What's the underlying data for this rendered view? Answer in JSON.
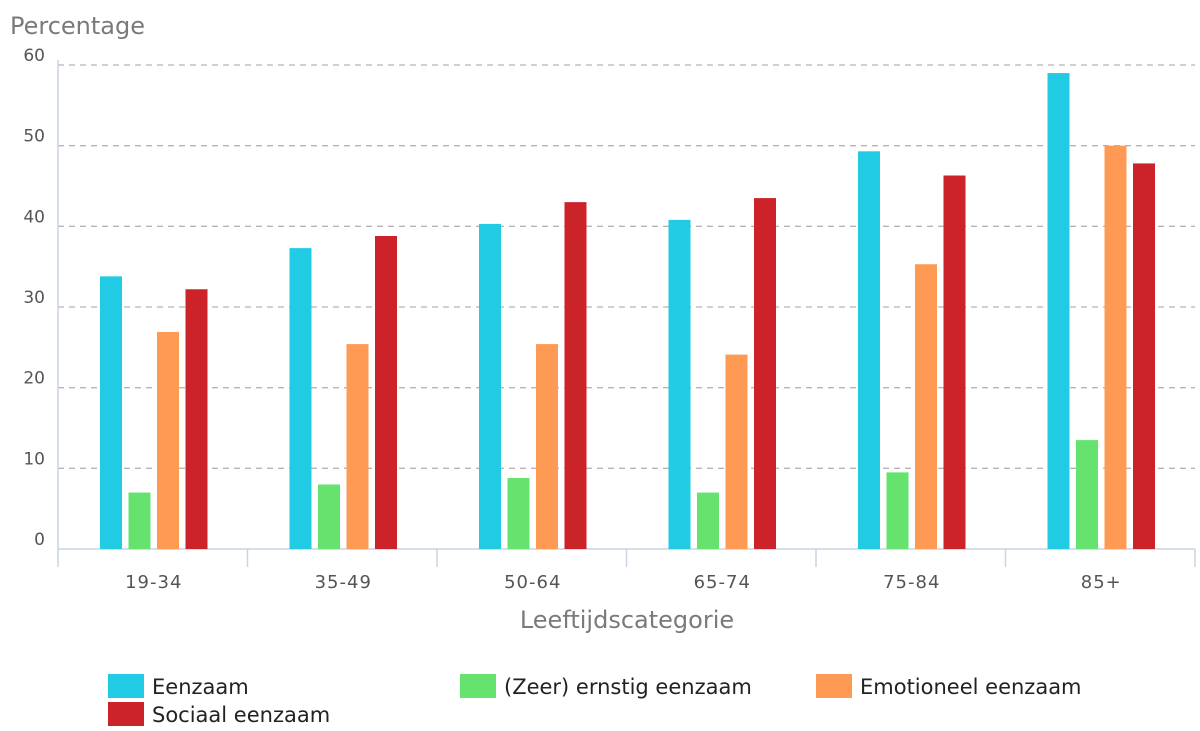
{
  "chart_data": {
    "type": "bar",
    "ylabel": "Percentage",
    "xlabel": "Leeftijdscategorie",
    "ylim": [
      0,
      60
    ],
    "yticks": [
      0,
      10,
      20,
      30,
      40,
      50,
      60
    ],
    "grid": true,
    "legend_position": "bottom",
    "categories": [
      "19-34",
      "35-49",
      "50-64",
      "65-74",
      "75-84",
      "85+"
    ],
    "series": [
      {
        "name": "Eenzaam",
        "color": "#22cbe4",
        "values": [
          33.8,
          37.3,
          40.3,
          40.8,
          49.3,
          59.0
        ]
      },
      {
        "name": "(Zeer) ernstig eenzaam",
        "color": "#66e36f",
        "values": [
          7.0,
          8.0,
          8.8,
          7.0,
          9.5,
          13.5
        ]
      },
      {
        "name": "Emotioneel eenzaam",
        "color": "#ff9a55",
        "values": [
          26.9,
          25.4,
          25.4,
          24.1,
          35.3,
          50.0
        ]
      },
      {
        "name": "Sociaal eenzaam",
        "color": "#cc2229",
        "values": [
          32.2,
          38.8,
          43.0,
          43.5,
          46.3,
          47.8
        ]
      }
    ]
  }
}
